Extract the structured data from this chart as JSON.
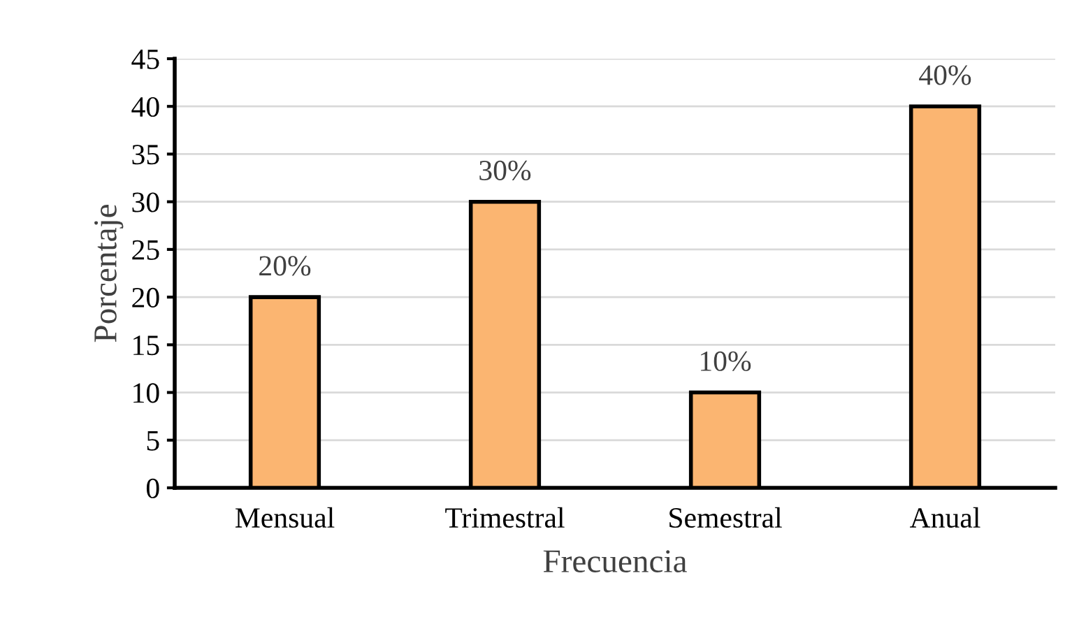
{
  "chart_data": {
    "type": "bar",
    "xlabel": "Frecuencia",
    "ylabel": "Porcentaje",
    "categories": [
      "Mensual",
      "Trimestral",
      "Semestral",
      "Anual"
    ],
    "values": [
      20,
      30,
      10,
      40
    ],
    "color": "#fbb571",
    "value_labels": [
      "20%",
      "30%",
      "10%",
      "40%"
    ],
    "ylim": [
      0,
      45
    ],
    "yticks": [
      0,
      5,
      10,
      15,
      20,
      25,
      30,
      35,
      40,
      45
    ],
    "grid": "y",
    "legend": false
  }
}
